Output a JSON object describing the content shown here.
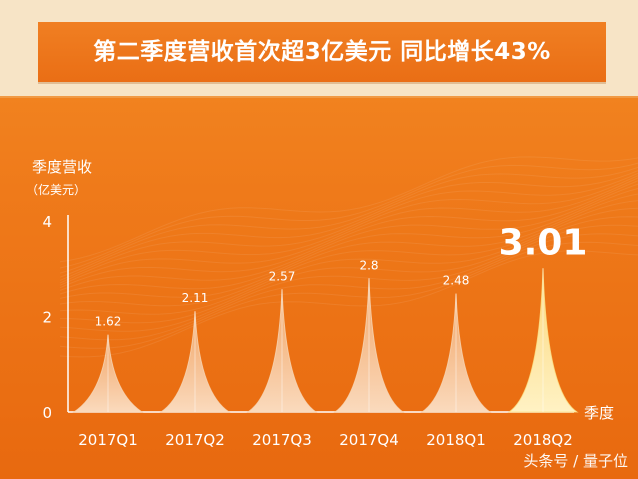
{
  "banner": {
    "title": "第二季度营收首次超3亿美元 同比增长43%"
  },
  "watermark": "头条号 / 量子位",
  "colors": {
    "background": "#ef7a1a",
    "peak": "#f6c9a0",
    "highlight_peak": "#fde7a0",
    "text": "#ffffff",
    "highlight_text": "#ffffff"
  },
  "chart_data": {
    "type": "bar",
    "categories": [
      "2017Q1",
      "2017Q2",
      "2017Q3",
      "2017Q4",
      "2018Q1",
      "2018Q2"
    ],
    "values": [
      1.62,
      2.11,
      2.57,
      2.8,
      2.48,
      3.01
    ],
    "value_labels": [
      "1.62",
      "2.11",
      "2.57",
      "2.8",
      "2.48",
      "3.01"
    ],
    "highlight_index": 5,
    "ylabel": "季度营收",
    "ylabel_unit": "（亿美元）",
    "xlabel": "季度",
    "yticks": [
      0,
      2,
      4
    ],
    "ylim": [
      0,
      4
    ],
    "grid": false,
    "legend": "none"
  }
}
